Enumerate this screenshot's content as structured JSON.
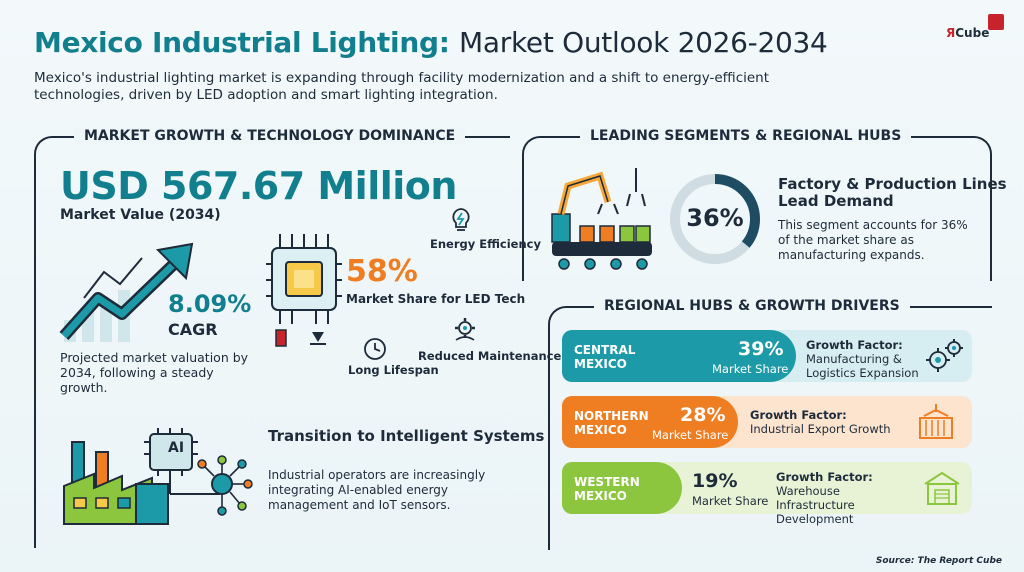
{
  "header": {
    "title_accent": "Mexico Industrial Lighting:",
    "title_rest": "Market Outlook 2026-2034",
    "subtitle": "Mexico's industrial lighting market is expanding through facility modernization and a shift to energy-efficient technologies, driven by LED adoption and smart lighting integration.",
    "logo_r": "Я",
    "logo_text": "Cube"
  },
  "left": {
    "section_title": "MARKET GROWTH & TECHNOLOGY DOMINANCE",
    "market_value": "USD 567.67 Million",
    "market_value_label": "Market Value (2034)",
    "cagr_value": "8.09%",
    "cagr_label": "CAGR",
    "projection_text": "Projected market valuation by 2034, following a steady growth.",
    "led_share": "58%",
    "led_share_label": "Market Share for LED Tech",
    "energy_label": "Energy Efficiency",
    "lifespan_label": "Long Lifespan",
    "maintenance_label": "Reduced Maintenance Costs",
    "ai_label": "AI",
    "transition_title": "Transition to Intelligent Systems",
    "transition_desc": "Industrial operators are increasingly integrating AI-enabled energy management and IoT sensors."
  },
  "right": {
    "section_title": "LEADING SEGMENTS & REGIONAL HUBS",
    "segment_share": "36%",
    "segment_share_value": 36,
    "segment_title": "Factory & Production Lines Lead Demand",
    "segment_desc": "This segment accounts for 36% of the market share as manufacturing expands.",
    "regions_title": "REGIONAL HUBS & GROWTH DRIVERS",
    "regions": [
      {
        "name": "CENTRAL MEXICO",
        "share": "39%",
        "share_label": "Market Share",
        "factor_label": "Growth Factor:",
        "factor": "Manufacturing & Logistics Expansion",
        "color": "#1d9aa8",
        "tint": "#d6eef1"
      },
      {
        "name": "NORTHERN MEXICO",
        "share": "28%",
        "share_label": "Market Share",
        "factor_label": "Growth Factor:",
        "factor": "Industrial Export Growth",
        "color": "#ef7d22",
        "tint": "#fce4cf"
      },
      {
        "name": "WESTERN MEXICO",
        "share": "19%",
        "share_label": "Market Share",
        "factor_label": "Growth Factor:",
        "factor": "Warehouse Infrastructure Development",
        "color": "#8cc63f",
        "tint": "#e8f3d6"
      }
    ]
  },
  "footer": {
    "source": "Source: The Report Cube"
  },
  "colors": {
    "teal": "#127f8f",
    "orange": "#ef7d22",
    "green": "#8cc63f",
    "navy": "#1e2b3a",
    "red": "#c7232d"
  }
}
